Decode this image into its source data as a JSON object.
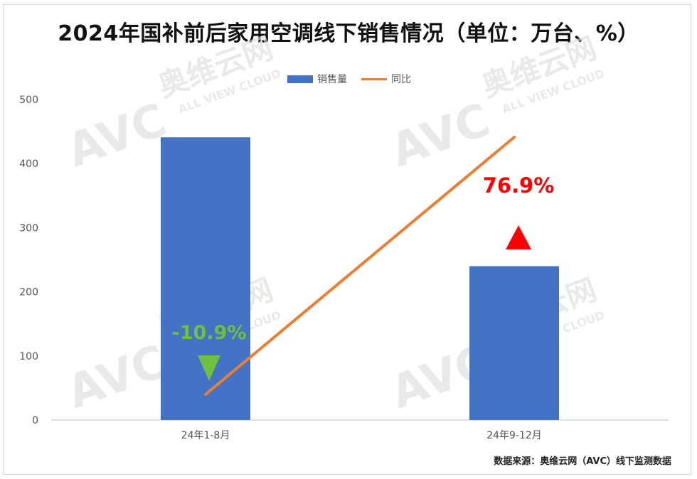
{
  "title": "2024年国补前后家用空调线下销售情况（单位：万台、%）",
  "legend": {
    "bar_label": "销售量",
    "line_label": "同比"
  },
  "source": "数据来源：奥维云网（AVC）线下监测数据",
  "watermark": {
    "brand": "奥维云网",
    "sub": "ALL VIEW CLOUD",
    "logo": "AVC"
  },
  "colors": {
    "bar": "#4472C4",
    "line": "#ED7D31",
    "up": "#FF0000",
    "down": "#70C040"
  },
  "chart_data": {
    "type": "bar",
    "categories": [
      "24年1-8月",
      "24年9-12月"
    ],
    "series": [
      {
        "name": "销售量",
        "type": "bar",
        "values": [
          441,
          240
        ]
      },
      {
        "name": "同比",
        "type": "line",
        "values": [
          -10.9,
          76.9
        ]
      }
    ],
    "ylim": [
      0,
      500
    ],
    "yticks": [
      0,
      100,
      200,
      300,
      400,
      500
    ],
    "annotations": [
      {
        "category": "24年1-8月",
        "text": "-10.9%",
        "direction": "down"
      },
      {
        "category": "24年9-12月",
        "text": "76.9%",
        "direction": "up"
      }
    ],
    "grid": false,
    "legend_position": "top"
  }
}
